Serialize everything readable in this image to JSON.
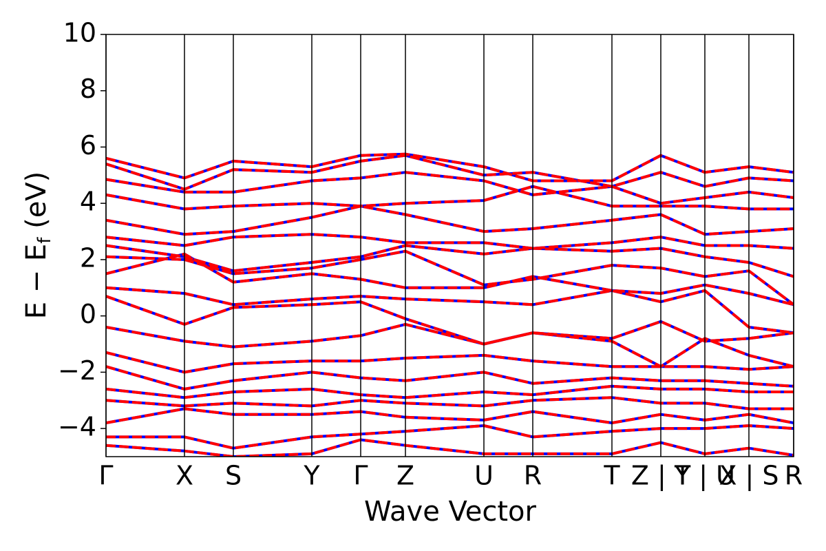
{
  "chart_data": {
    "type": "band_structure",
    "ylabel": [
      "E − E",
      "f",
      " (eV)"
    ],
    "xlabel": "Wave Vector",
    "xlim": [
      0,
      9.99
    ],
    "ylim": [
      -5,
      10
    ],
    "yticks": [
      {
        "value": -4,
        "label": "−4"
      },
      {
        "value": -2,
        "label": "−2"
      },
      0,
      2,
      4,
      6,
      8,
      10
    ],
    "xticks": [
      {
        "value": 0,
        "label": "Γ"
      },
      {
        "value": 1.14,
        "label": "X"
      },
      {
        "value": 1.85,
        "label": "S"
      },
      {
        "value": 2.99,
        "label": "Y"
      },
      {
        "value": 3.7,
        "label": "Γ"
      },
      {
        "value": 4.35,
        "label": "Z"
      },
      {
        "value": 5.49,
        "label": "U"
      },
      {
        "value": 6.2,
        "label": "R"
      },
      {
        "value": 7.35,
        "label": "T"
      },
      {
        "value": 8.06,
        "label": "Z | Y"
      },
      {
        "value": 8.7,
        "label": "T | U"
      },
      {
        "value": 9.34,
        "label": "X | S"
      },
      {
        "value": 9.99,
        "label": "R"
      }
    ],
    "x": [
      0,
      1.14,
      1.85,
      2.99,
      3.7,
      4.35,
      5.49,
      6.2,
      7.35,
      8.06,
      8.7,
      9.34,
      9.99
    ],
    "spin_channels": [
      {
        "color": "#0000ff",
        "style": "solid",
        "bands": "same"
      },
      {
        "color": "#ff0000",
        "style": "dashed"
      }
    ],
    "bands": [
      [
        5.6,
        4.9,
        5.5,
        5.3,
        5.7,
        5.75,
        5.3,
        4.8,
        4.8,
        5.7,
        5.1,
        5.3,
        5.1
      ],
      [
        5.4,
        4.5,
        5.2,
        5.1,
        5.5,
        5.7,
        5.0,
        5.1,
        4.6,
        5.1,
        4.6,
        4.9,
        4.8
      ],
      [
        4.85,
        4.4,
        4.4,
        4.8,
        4.9,
        5.1,
        4.8,
        4.3,
        4.6,
        4.0,
        4.2,
        4.4,
        4.2
      ],
      [
        4.3,
        3.8,
        3.9,
        4.0,
        3.9,
        4.0,
        4.1,
        4.6,
        3.9,
        3.9,
        3.9,
        3.8,
        3.8
      ],
      [
        3.4,
        2.9,
        3.0,
        3.5,
        3.9,
        3.6,
        3.0,
        3.1,
        3.4,
        3.6,
        2.9,
        3.0,
        3.1
      ],
      [
        2.8,
        2.5,
        2.8,
        2.9,
        2.8,
        2.6,
        2.6,
        2.4,
        2.6,
        2.8,
        2.5,
        2.5,
        2.4
      ],
      [
        2.5,
        2.1,
        1.6,
        1.9,
        2.1,
        2.5,
        2.2,
        2.4,
        2.3,
        2.4,
        2.1,
        1.9,
        1.4
      ],
      [
        2.1,
        2.0,
        1.5,
        1.7,
        2.0,
        2.3,
        1.1,
        1.3,
        1.8,
        1.7,
        1.4,
        1.6,
        0.4
      ],
      [
        1.5,
        2.2,
        1.2,
        1.5,
        1.3,
        1.0,
        1.0,
        1.4,
        0.9,
        0.8,
        1.1,
        0.8,
        0.4
      ],
      [
        1.0,
        0.8,
        0.4,
        0.6,
        0.7,
        0.6,
        0.5,
        0.4,
        0.9,
        0.5,
        0.9,
        -0.4,
        -0.6
      ],
      [
        0.7,
        -0.3,
        0.3,
        0.4,
        0.5,
        -0.1,
        -1.0,
        -0.6,
        -0.8,
        -0.2,
        -0.9,
        -0.8,
        -0.6
      ],
      [
        -0.4,
        -0.9,
        -1.1,
        -0.9,
        -0.7,
        -0.3,
        -1.0,
        -0.6,
        -0.9,
        -1.8,
        -0.8,
        -1.4,
        -1.8
      ],
      [
        -1.3,
        -2.0,
        -1.7,
        -1.6,
        -1.6,
        -1.5,
        -1.4,
        -1.6,
        -1.8,
        -1.8,
        -1.8,
        -1.9,
        -1.8
      ],
      [
        -1.8,
        -2.6,
        -2.3,
        -2.0,
        -2.2,
        -2.3,
        -2.0,
        -2.4,
        -2.2,
        -2.3,
        -2.3,
        -2.4,
        -2.5
      ],
      [
        -2.6,
        -2.9,
        -2.7,
        -2.6,
        -2.8,
        -2.9,
        -2.7,
        -2.8,
        -2.5,
        -2.6,
        -2.6,
        -2.7,
        -2.7
      ],
      [
        -3.0,
        -3.2,
        -3.1,
        -3.2,
        -3.0,
        -3.1,
        -3.2,
        -3.0,
        -2.9,
        -3.1,
        -3.1,
        -3.3,
        -3.3
      ],
      [
        -3.8,
        -3.3,
        -3.5,
        -3.5,
        -3.4,
        -3.6,
        -3.7,
        -3.4,
        -3.8,
        -3.5,
        -3.7,
        -3.5,
        -3.8
      ],
      [
        -4.3,
        -4.3,
        -4.7,
        -4.3,
        -4.2,
        -4.1,
        -3.9,
        -4.3,
        -4.1,
        -4.0,
        -4.0,
        -3.9,
        -4.0
      ],
      [
        -4.6,
        -4.8,
        -5.0,
        -4.9,
        -4.4,
        -4.6,
        -4.9,
        -4.9,
        -4.9,
        -4.5,
        -4.9,
        -4.7,
        -4.95
      ]
    ]
  }
}
